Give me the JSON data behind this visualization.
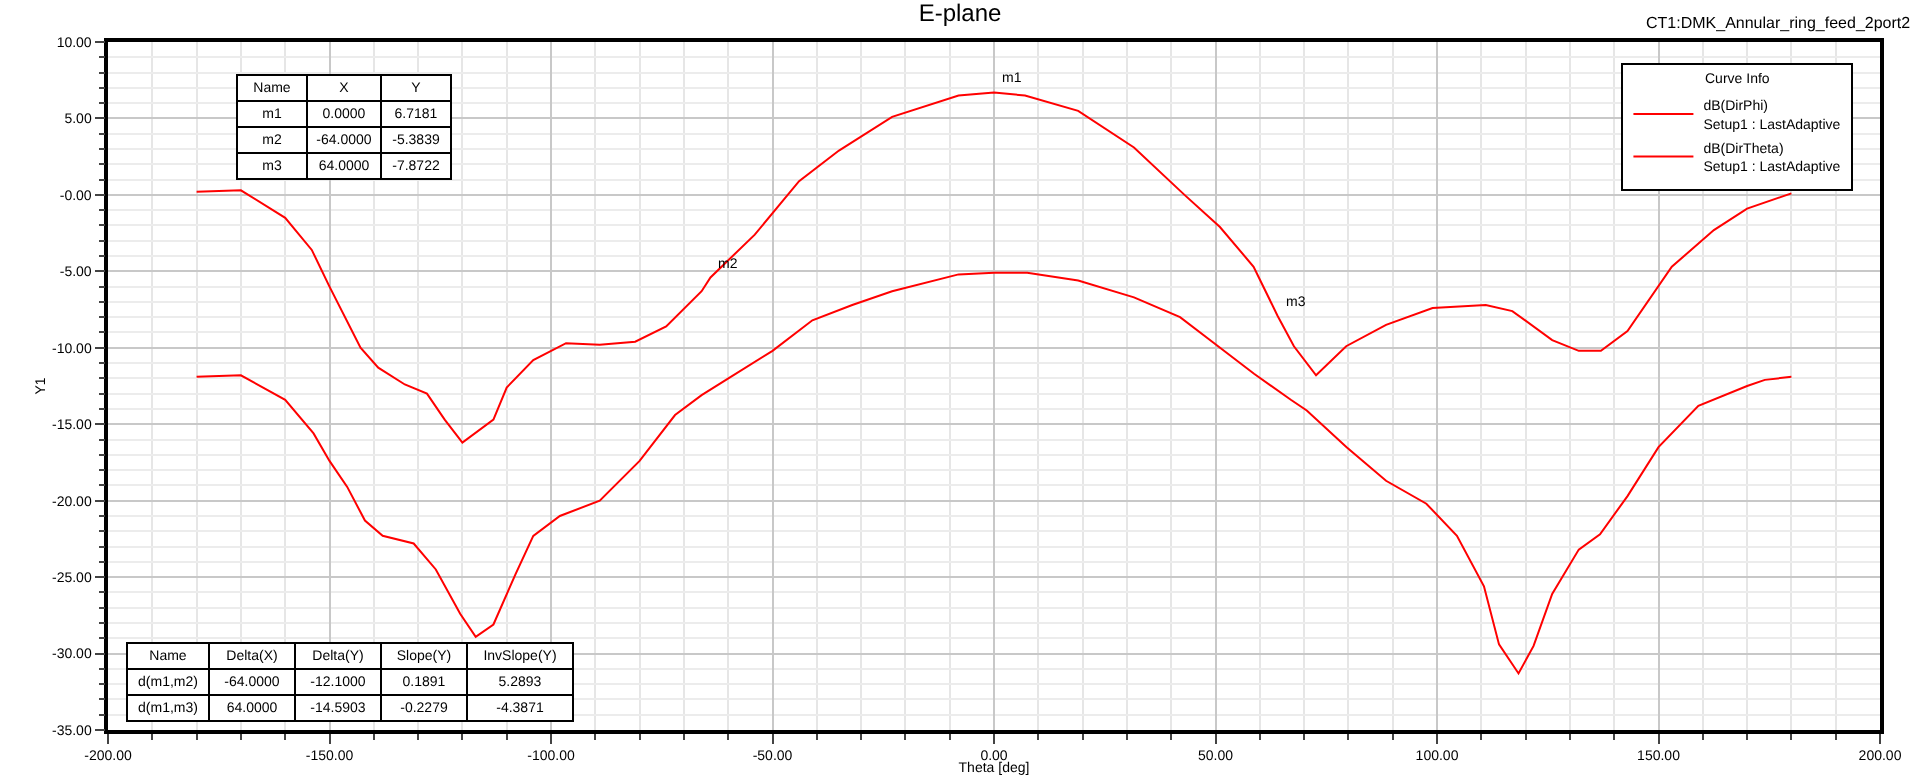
{
  "chart_data": {
    "type": "line",
    "title": "E-plane",
    "xlabel": "Theta [deg]",
    "ylabel": "Y1",
    "legend_title": "Curve Info",
    "legend": "top right",
    "grid": true,
    "marker": "none",
    "line_style": "solid",
    "xlim": [
      -200,
      200
    ],
    "xticks": [
      {
        "value": -200,
        "label": "-200.00"
      },
      {
        "value": -150,
        "label": "-150.00"
      },
      {
        "value": -100,
        "label": "-100.00"
      },
      {
        "value": -50,
        "label": "-50.00"
      },
      {
        "value": 0,
        "label": "0.00"
      },
      {
        "value": 50,
        "label": "50.00"
      },
      {
        "value": 100,
        "label": "100.00"
      },
      {
        "value": 150,
        "label": "150.00"
      },
      {
        "value": 200,
        "label": "200.00"
      }
    ],
    "ylim": [
      -35,
      10
    ],
    "yticks": [
      {
        "value": 10,
        "label": "10.00"
      },
      {
        "value": 5,
        "label": "5.00"
      },
      {
        "value": 0,
        "label": "-0.00"
      },
      {
        "value": -5,
        "label": "-5.00"
      },
      {
        "value": -10,
        "label": "-10.00"
      },
      {
        "value": -15,
        "label": "-15.00"
      },
      {
        "value": -20,
        "label": "-20.00"
      },
      {
        "value": -25,
        "label": "-25.00"
      },
      {
        "value": -30,
        "label": "-30.00"
      },
      {
        "value": -35,
        "label": "-35.00"
      }
    ],
    "series": [
      {
        "name": "dB(DirPhi)\nSetup1 : LastAdaptive",
        "color": "#ff0000",
        "x": [
          -180,
          -170,
          -160,
          -154,
          -150,
          -143,
          -139,
          -133,
          -128,
          -124,
          -120,
          -113,
          -110,
          -104,
          -96.6,
          -89,
          -81,
          -74,
          -66,
          -64,
          -54,
          -44,
          -35,
          -23,
          -8,
          0,
          7,
          19,
          31.6,
          43,
          51,
          58.6,
          64,
          67.7,
          72.7,
          79.5,
          88.5,
          99,
          111,
          117,
          126,
          132,
          137,
          143,
          153,
          162.5,
          170,
          180
        ],
        "values": [
          0.2,
          0.3,
          -1.5,
          -3.6,
          -6.0,
          -10,
          -11.3,
          -12.4,
          -13.0,
          -14.7,
          -16.2,
          -14.7,
          -12.6,
          -10.8,
          -9.7,
          -9.8,
          -9.6,
          -8.6,
          -6.3,
          -5.4,
          -2.6,
          0.9,
          2.9,
          5.1,
          6.5,
          6.7,
          6.5,
          5.5,
          3.1,
          0,
          -2.1,
          -4.7,
          -7.9,
          -9.9,
          -11.8,
          -9.9,
          -8.5,
          -7.4,
          -7.2,
          -7.6,
          -9.5,
          -10.2,
          -10.2,
          -8.9,
          -4.7,
          -2.3,
          -0.9,
          0.1
        ]
      },
      {
        "name": "dB(DirTheta)\nSetup1 : LastAdaptive",
        "color": "#ff0000",
        "x": [
          -180,
          -170,
          -160,
          -153.6,
          -150,
          -146,
          -142,
          -138,
          -131,
          -126,
          -120.5,
          -117,
          -113,
          -108,
          -104,
          -98,
          -89,
          -80,
          -72,
          -66,
          -60.5,
          -50,
          -41,
          -32,
          -23,
          -8,
          0,
          7.5,
          19,
          31.6,
          42,
          49.7,
          58.7,
          67,
          70.6,
          79.6,
          88.5,
          97.6,
          104.5,
          110.6,
          114,
          118.4,
          121.8,
          126,
          132,
          136.8,
          143,
          150,
          159,
          170,
          174,
          180
        ],
        "values": [
          -11.9,
          -11.8,
          -13.4,
          -15.6,
          -17.4,
          -19.1,
          -21.3,
          -22.3,
          -22.8,
          -24.5,
          -27.4,
          -28.9,
          -28.1,
          -24.8,
          -22.3,
          -21.0,
          -20.0,
          -17.4,
          -14.4,
          -13.1,
          -12.1,
          -10.2,
          -8.2,
          -7.2,
          -6.3,
          -5.2,
          -5.1,
          -5.1,
          -5.6,
          -6.7,
          -8.0,
          -9.7,
          -11.7,
          -13.4,
          -14.1,
          -16.5,
          -18.7,
          -20.2,
          -22.3,
          -25.6,
          -29.4,
          -31.3,
          -29.5,
          -26.1,
          -23.2,
          -22.2,
          -19.7,
          -16.5,
          -13.8,
          -12.5,
          -12.1,
          -11.9
        ]
      }
    ],
    "annotations": [
      {
        "text": "m1",
        "x": 0,
        "y": 6.7
      },
      {
        "text": "m2",
        "x": -64,
        "y": -5.4
      },
      {
        "text": "m3",
        "x": 64,
        "y": -7.9
      },
      "CT1:DMK_Annular_ring_feed_2port2",
      "Name",
      "X",
      "Y",
      "m1",
      "0.0000",
      "6.7181",
      "m2",
      "-64.0000",
      "-5.3839",
      "m3",
      "64.0000",
      "-7.8722",
      "Name",
      "Delta(X)",
      "Delta(Y)",
      "Slope(Y)",
      "InvSlope(Y)",
      "d(m1,m2)",
      "-64.0000",
      "-12.1000",
      "0.1891",
      "5.2893",
      "d(m1,m3)",
      "64.0000",
      "-14.5903",
      "-0.2279",
      "-4.3871"
    ]
  }
}
